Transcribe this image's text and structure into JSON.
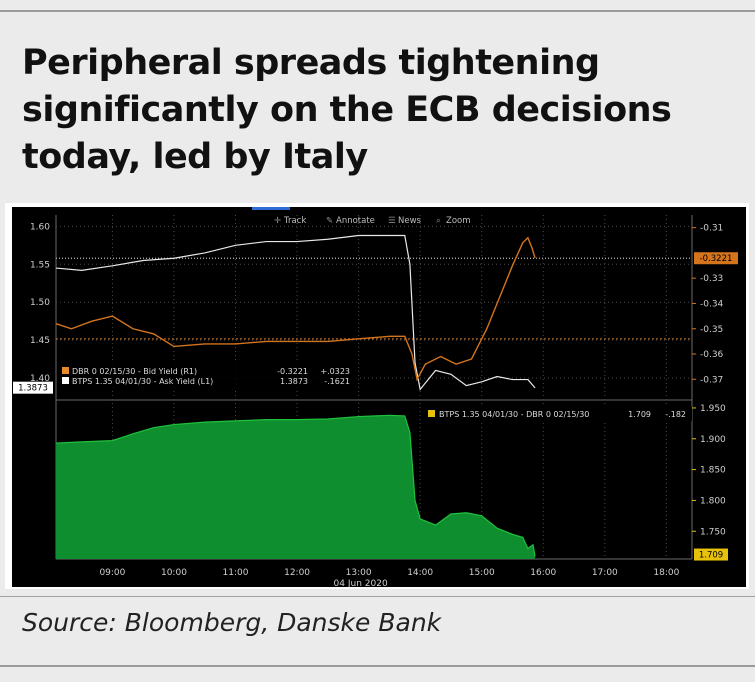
{
  "title": "Peripheral spreads tightening significantly on the ECB decisions today, led by Italy",
  "source": "Source: Bloomberg, Danske Bank",
  "toolbar": [
    "Track",
    "Annotate",
    "News",
    "Zoom"
  ],
  "colors": {
    "btp": "#e8e8e8",
    "dbr": "#d4741c",
    "spread_fill": "#0e8e2e",
    "spread_line": "#1fc23c",
    "badge_yellow": "#e6c20a"
  },
  "chart_data": [
    {
      "type": "line",
      "date_label": "04 Jun 2020",
      "x_ticks": [
        "09:00",
        "10:00",
        "11:00",
        "12:00",
        "13:00",
        "14:00",
        "15:00",
        "16:00",
        "17:00",
        "18:00"
      ],
      "xlim": [
        "08:05",
        "18:25"
      ],
      "left_axis": {
        "ticks": [
          "1.60",
          "1.55",
          "1.50",
          "1.45",
          "1.40"
        ],
        "ylim": [
          1.375,
          1.615
        ],
        "last_value": "1.3873"
      },
      "right_axis": {
        "ticks": [
          "-0.31",
          "-0.33",
          "-0.34",
          "-0.35",
          "-0.36",
          "-0.37"
        ],
        "ylim": [
          -0.377,
          -0.305
        ],
        "last_value": "-0.3221"
      },
      "legend": [
        {
          "label": "DBR 0 02/15/30 - Bid Yield (R1)",
          "last": "-0.3221",
          "change": "+.0323",
          "color": "#e8892c"
        },
        {
          "label": "BTPS 1.35 04/01/30 - Ask Yield (L1)",
          "last": "1.3873",
          "change": "-.1621",
          "color": "#ffffff"
        }
      ],
      "series": [
        {
          "name": "BTPS 1.35 04/01/30 - Ask Yield (L1)",
          "axis": "left",
          "x": [
            "08:05",
            "08:30",
            "09:00",
            "09:30",
            "10:00",
            "10:30",
            "11:00",
            "11:30",
            "12:00",
            "12:30",
            "13:00",
            "13:30",
            "13:45",
            "13:50",
            "13:55",
            "14:00",
            "14:15",
            "14:30",
            "14:45",
            "15:00",
            "15:15",
            "15:30",
            "15:45",
            "15:52"
          ],
          "values": [
            1.545,
            1.542,
            1.548,
            1.555,
            1.558,
            1.565,
            1.575,
            1.58,
            1.58,
            1.583,
            1.588,
            1.588,
            1.588,
            1.55,
            1.42,
            1.385,
            1.41,
            1.405,
            1.39,
            1.395,
            1.402,
            1.398,
            1.398,
            1.387
          ]
        },
        {
          "name": "DBR 0 02/15/30 - Bid Yield (R1)",
          "axis": "right",
          "x": [
            "08:05",
            "08:20",
            "08:40",
            "09:00",
            "09:20",
            "09:40",
            "10:00",
            "10:30",
            "11:00",
            "11:30",
            "12:00",
            "12:30",
            "13:00",
            "13:30",
            "13:45",
            "13:52",
            "13:57",
            "14:05",
            "14:20",
            "14:35",
            "14:50",
            "15:05",
            "15:20",
            "15:30",
            "15:40",
            "15:45",
            "15:49",
            "15:52"
          ],
          "values": [
            -0.348,
            -0.35,
            -0.347,
            -0.345,
            -0.35,
            -0.352,
            -0.357,
            -0.356,
            -0.356,
            -0.355,
            -0.355,
            -0.355,
            -0.354,
            -0.353,
            -0.353,
            -0.36,
            -0.37,
            -0.364,
            -0.361,
            -0.364,
            -0.362,
            -0.35,
            -0.335,
            -0.325,
            -0.316,
            -0.314,
            -0.318,
            -0.322
          ]
        }
      ]
    },
    {
      "type": "area",
      "x_ticks": [
        "09:00",
        "10:00",
        "11:00",
        "12:00",
        "13:00",
        "14:00",
        "15:00",
        "16:00",
        "17:00",
        "18:00"
      ],
      "xlim": [
        "08:05",
        "18:25"
      ],
      "y_ticks": [
        "1.950",
        "1.900",
        "1.850",
        "1.800",
        "1.750",
        "1.709"
      ],
      "ylim": [
        1.705,
        1.958
      ],
      "legend": [
        {
          "label": "BTPS 1.35 04/01/30 - DBR 0 02/15/30",
          "last": "1.709",
          "change": "-.182"
        }
      ],
      "series": [
        {
          "name": "BTPS 1.35 04/01/30 - DBR 0 02/15/30",
          "x": [
            "08:05",
            "08:30",
            "09:00",
            "09:20",
            "09:40",
            "10:00",
            "10:30",
            "11:00",
            "11:30",
            "12:00",
            "12:30",
            "13:00",
            "13:30",
            "13:45",
            "13:50",
            "13:55",
            "14:00",
            "14:15",
            "14:30",
            "14:45",
            "15:00",
            "15:15",
            "15:30",
            "15:40",
            "15:45",
            "15:50",
            "15:52"
          ],
          "values": [
            1.893,
            1.895,
            1.897,
            1.908,
            1.918,
            1.923,
            1.927,
            1.929,
            1.931,
            1.931,
            1.932,
            1.936,
            1.938,
            1.937,
            1.91,
            1.8,
            1.77,
            1.76,
            1.778,
            1.78,
            1.775,
            1.755,
            1.745,
            1.74,
            1.722,
            1.728,
            1.709
          ]
        }
      ]
    }
  ]
}
